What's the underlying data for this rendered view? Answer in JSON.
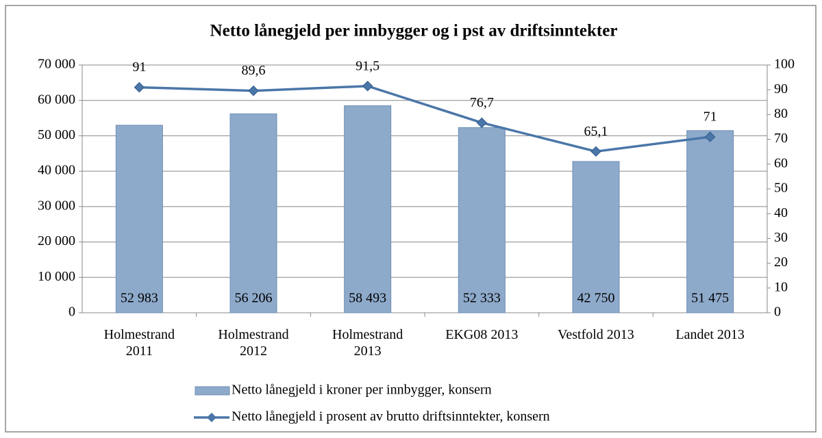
{
  "chart_data": {
    "type": "bar",
    "title": "Netto lånegjeld per innbygger og i pst av driftsinntekter",
    "categories": [
      "Holmestrand 2011",
      "Holmestrand 2012",
      "Holmestrand 2013",
      "EKG08 2013",
      "Vestfold 2013",
      "Landet 2013"
    ],
    "series": [
      {
        "name": "Netto lånegjeld i kroner per innbygger, konsern",
        "type": "bar",
        "color": "#8eaacb",
        "values": [
          52983,
          56206,
          58493,
          52333,
          42750,
          51475
        ],
        "value_labels": [
          "52 983",
          "56 206",
          "58 493",
          "52 333",
          "42 750",
          "51 475"
        ]
      },
      {
        "name": "Netto lånegjeld i prosent av brutto driftsinntekter, konsern",
        "type": "line",
        "axis": "y2",
        "color": "#4a76a8",
        "values": [
          91,
          89.6,
          91.5,
          76.7,
          65.1,
          71
        ],
        "value_labels": [
          "91",
          "89,6",
          "91,5",
          "76,7",
          "65,1",
          "71"
        ]
      }
    ],
    "ylim": [
      0,
      70000
    ],
    "yticks": [
      0,
      {
        "value": 10000,
        "label": "10 000"
      },
      {
        "value": 20000,
        "label": "20 000"
      },
      {
        "value": 30000,
        "label": "30 000"
      },
      {
        "value": 40000,
        "label": "40 000"
      },
      {
        "value": 50000,
        "label": "50 000"
      },
      {
        "value": 60000,
        "label": "60 000"
      },
      {
        "value": 70000,
        "label": "70 000"
      }
    ],
    "y2lim": [
      0,
      100
    ],
    "y2ticks": [
      0,
      10,
      20,
      30,
      40,
      50,
      60,
      70,
      80,
      90,
      100
    ],
    "grid": true
  }
}
